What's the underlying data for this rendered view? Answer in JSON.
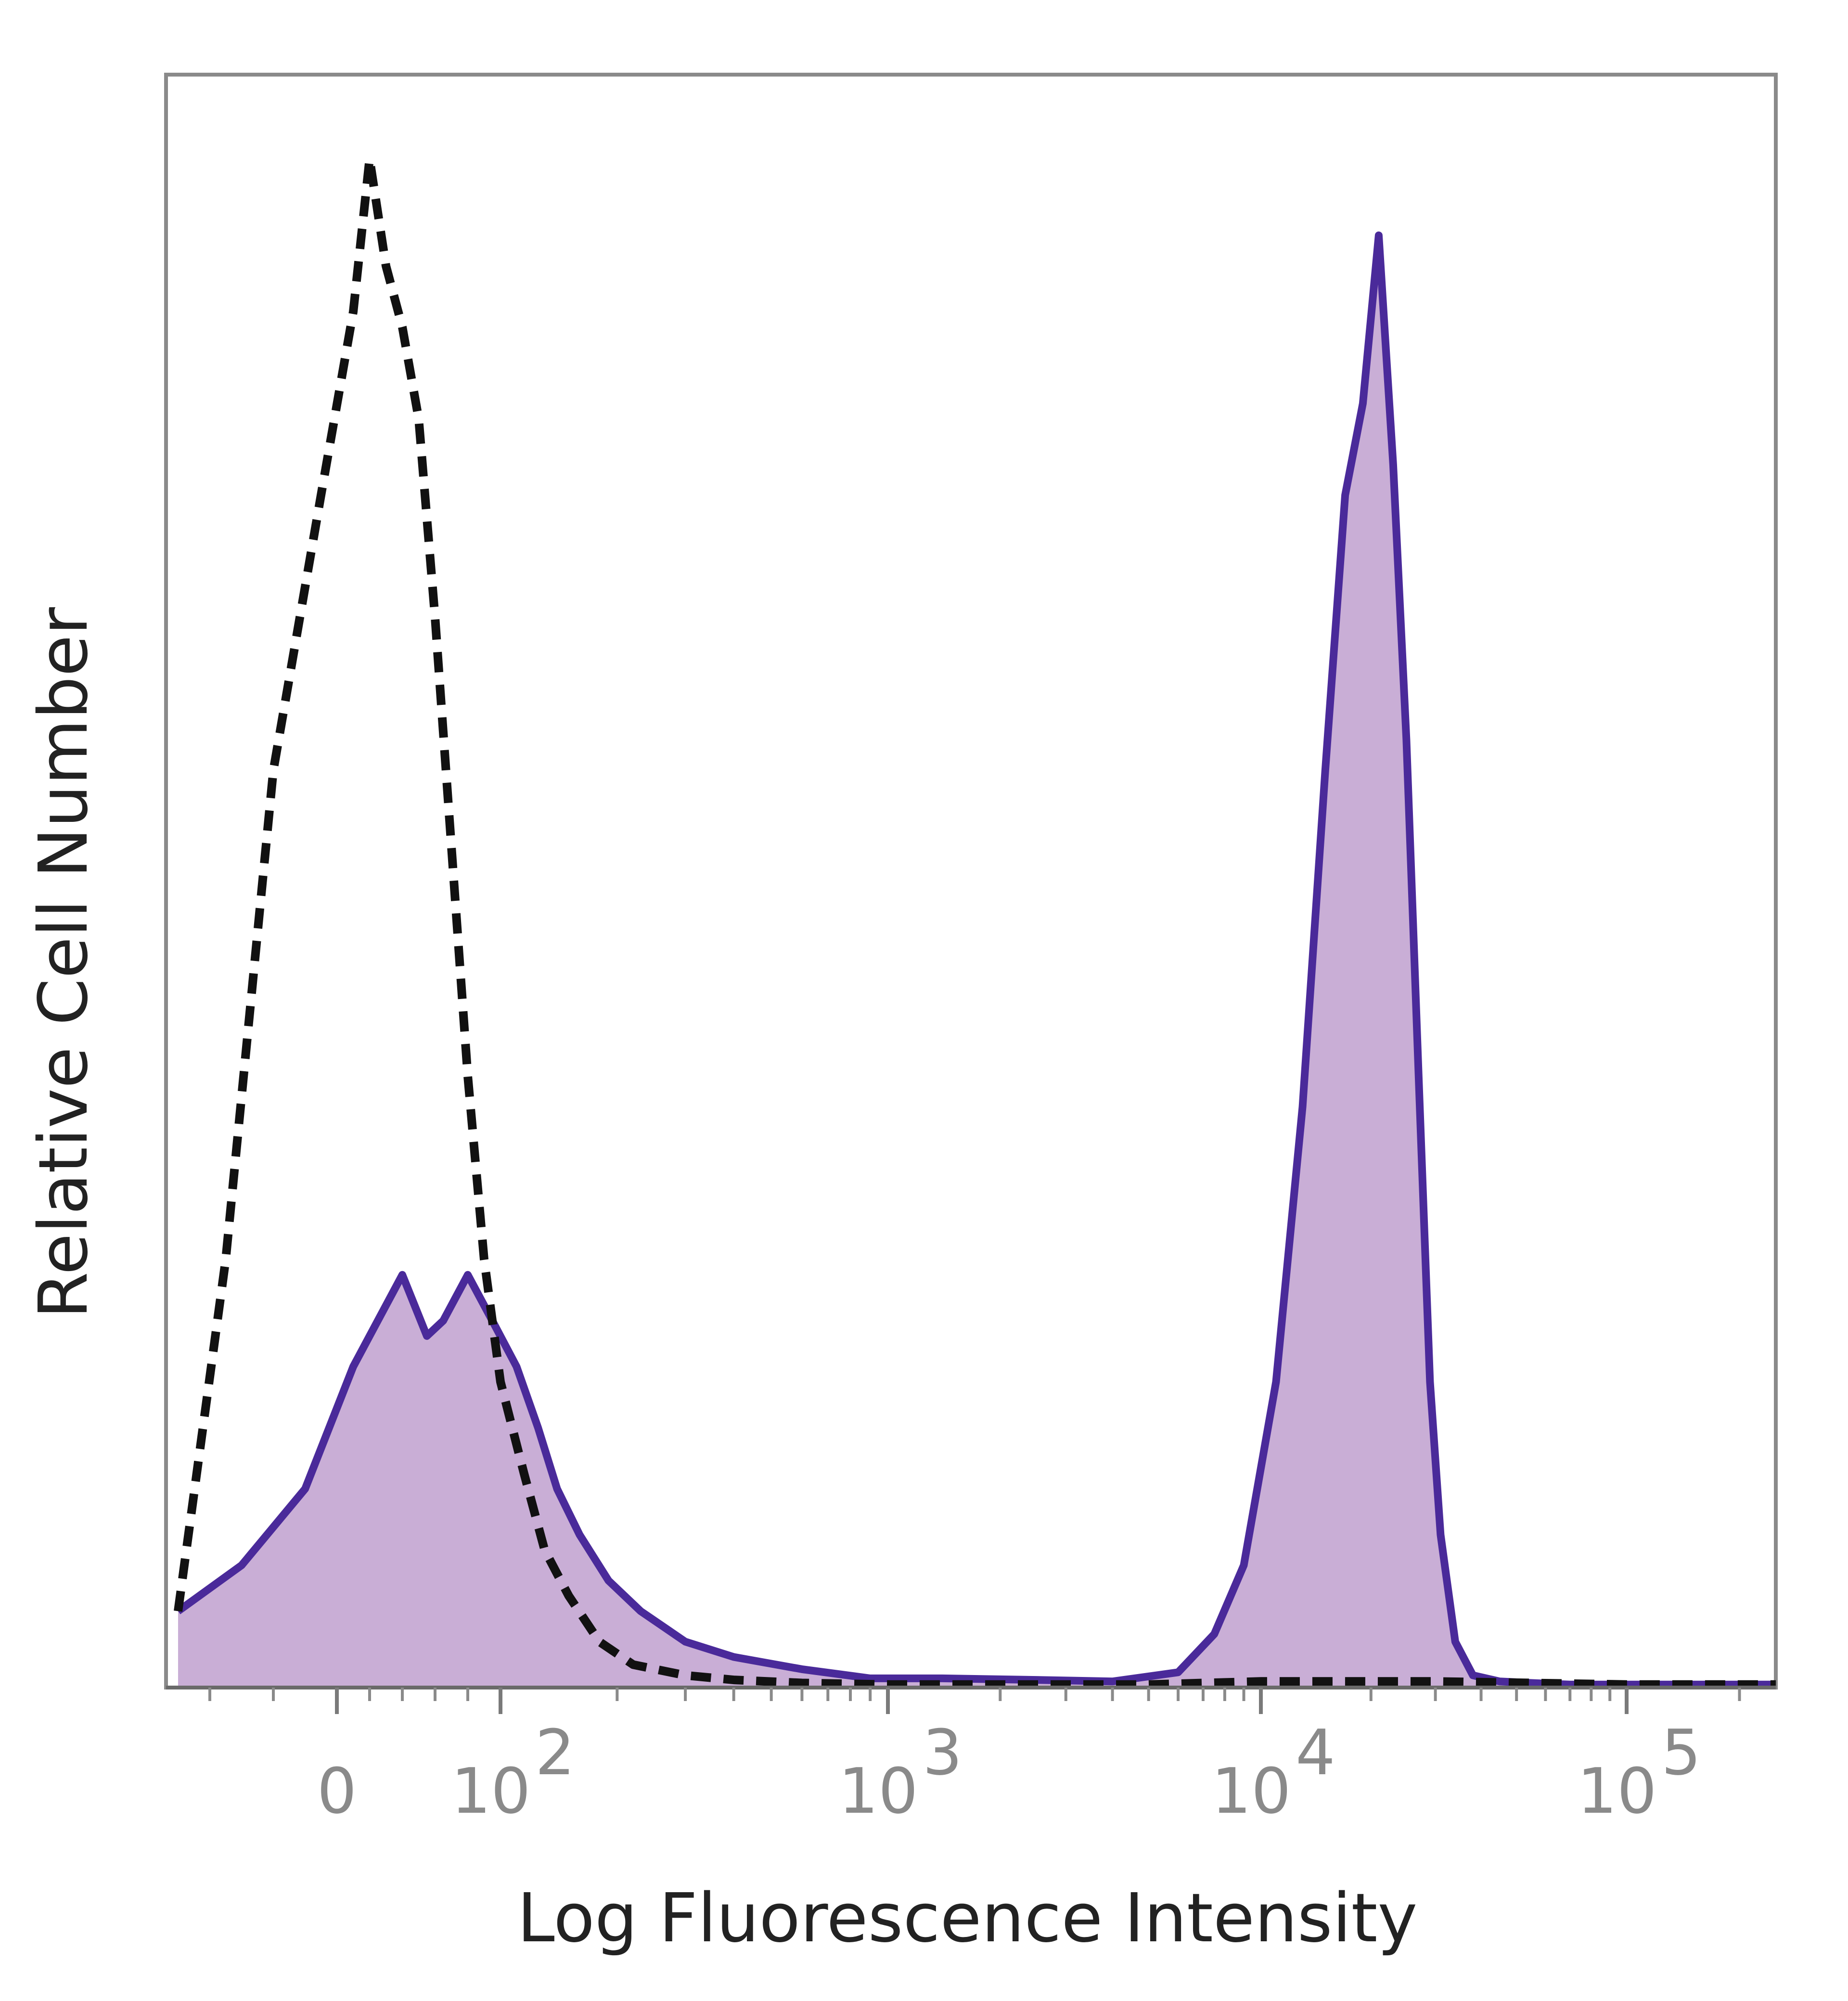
{
  "chart_data": {
    "type": "area",
    "xlabel": "Log Fluorescence Intensity",
    "ylabel": "Relative Cell Number",
    "x_scale": "biexponential",
    "xlim": [
      -50,
      250000
    ],
    "ylim": [
      0,
      1.0
    ],
    "grid": false,
    "legend": "none",
    "x_ticks": [
      {
        "value": 0,
        "label": "0",
        "exp": ""
      },
      {
        "value": 100,
        "label": "10",
        "exp": "2"
      },
      {
        "value": 1000,
        "label": "10",
        "exp": "3"
      },
      {
        "value": 10000,
        "label": "10",
        "exp": "4"
      },
      {
        "value": 100000,
        "label": "10",
        "exp": "5"
      }
    ],
    "series": [
      {
        "style": "filled-solid",
        "stroke": "#4a2a9a",
        "fill": "#c9aed6",
        "x": [
          -50,
          -30,
          -10,
          10,
          25,
          40,
          55,
          65,
          80,
          95,
          110,
          125,
          140,
          160,
          190,
          230,
          300,
          400,
          600,
          900,
          1400,
          2500,
          4000,
          6000,
          7500,
          9000,
          11000,
          13000,
          15000,
          17000,
          19000,
          21000,
          23000,
          25000,
          27000,
          29000,
          31000,
          34000,
          38000,
          45000,
          55000,
          70000,
          100000,
          150000,
          250000
        ],
        "y": [
          0.05,
          0.08,
          0.13,
          0.21,
          0.24,
          0.27,
          0.23,
          0.24,
          0.27,
          0.24,
          0.21,
          0.17,
          0.13,
          0.1,
          0.07,
          0.05,
          0.03,
          0.02,
          0.012,
          0.006,
          0.006,
          0.005,
          0.004,
          0.01,
          0.035,
          0.08,
          0.2,
          0.38,
          0.6,
          0.78,
          0.84,
          0.95,
          0.8,
          0.62,
          0.4,
          0.2,
          0.1,
          0.03,
          0.008,
          0.004,
          0.003,
          0.002,
          0.002,
          0.002,
          0.002
        ]
      },
      {
        "style": "dashed-outline",
        "stroke": "#111111",
        "x": [
          -50,
          -35,
          -20,
          -5,
          10,
          20,
          30,
          40,
          50,
          60,
          70,
          80,
          90,
          100,
          115,
          130,
          150,
          180,
          220,
          300,
          400,
          600,
          1000,
          2000,
          5000,
          10000,
          30000,
          100000,
          250000
        ],
        "y": [
          0.05,
          0.28,
          0.6,
          0.78,
          0.9,
          1.0,
          0.93,
          0.89,
          0.83,
          0.7,
          0.55,
          0.4,
          0.28,
          0.2,
          0.14,
          0.09,
          0.06,
          0.03,
          0.015,
          0.008,
          0.005,
          0.003,
          0.002,
          0.002,
          0.002,
          0.004,
          0.004,
          0.002,
          0.002
        ]
      }
    ]
  }
}
